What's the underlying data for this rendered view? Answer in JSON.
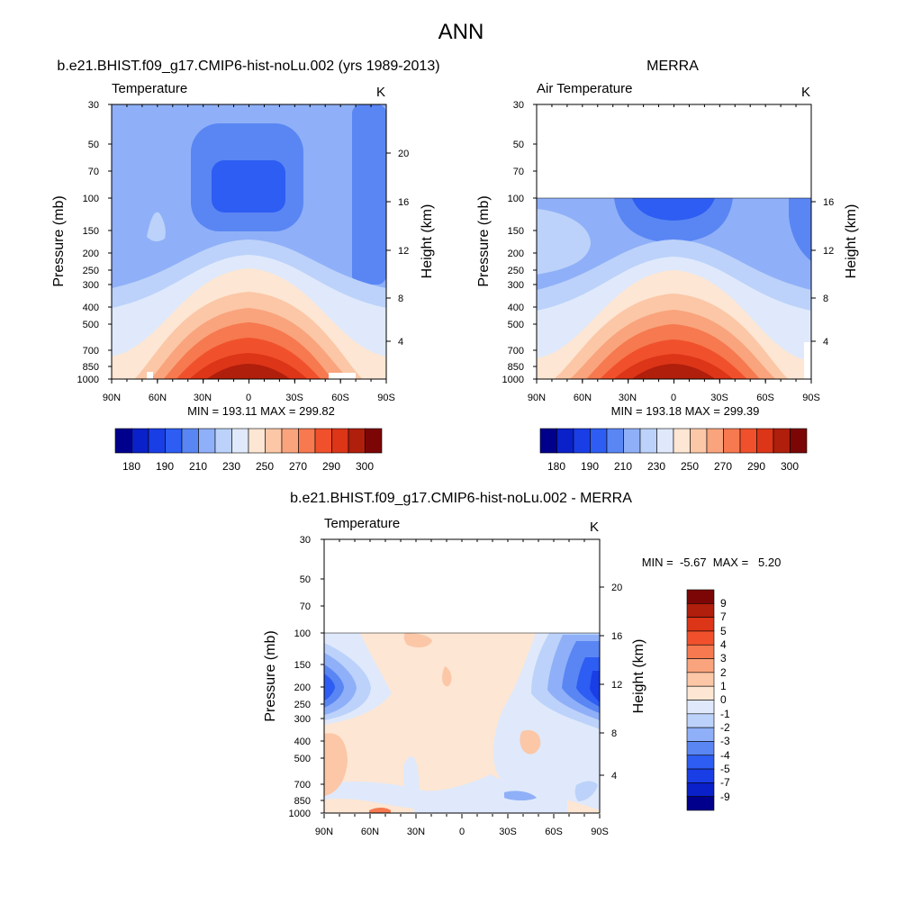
{
  "figure": {
    "title": "ANN"
  },
  "chart_data": [
    {
      "type": "heatmap",
      "title": "b.e21.BHIST.f09_g17.CMIP6-hist-noLu.002 (yrs 1989-2013)",
      "subtitle_left": "Temperature",
      "subtitle_right": "K",
      "ylabel": "Pressure (mb)",
      "ylabel_right": "Height (km)",
      "x_ticks": [
        "90N",
        "60N",
        "30N",
        "0",
        "30S",
        "60S",
        "90S"
      ],
      "y_ticks": [
        "30",
        "50",
        "70",
        "100",
        "150",
        "200",
        "250",
        "300",
        "400",
        "500",
        "700",
        "850",
        "1000"
      ],
      "height_ticks": [
        "20",
        "16",
        "12",
        "8",
        "4"
      ],
      "stats": "MIN = 193.11  MAX = 299.82",
      "data_top_pressure": 30,
      "colorbar_labels": [
        "180",
        "190",
        "210",
        "230",
        "250",
        "270",
        "290",
        "300"
      ]
    },
    {
      "type": "heatmap",
      "title": "MERRA",
      "subtitle_left": "Air Temperature",
      "subtitle_right": "K",
      "ylabel": "Pressure (mb)",
      "ylabel_right": "Height (km)",
      "x_ticks": [
        "90N",
        "60N",
        "30N",
        "0",
        "30S",
        "60S",
        "90S"
      ],
      "y_ticks": [
        "30",
        "50",
        "70",
        "100",
        "150",
        "200",
        "250",
        "300",
        "400",
        "500",
        "700",
        "850",
        "1000"
      ],
      "height_ticks": [
        "16",
        "12",
        "8",
        "4"
      ],
      "stats": "MIN = 193.18  MAX = 299.39",
      "data_top_pressure": 100,
      "colorbar_labels": [
        "180",
        "190",
        "210",
        "230",
        "250",
        "270",
        "290",
        "300"
      ]
    },
    {
      "type": "heatmap",
      "title": "b.e21.BHIST.f09_g17.CMIP6-hist-noLu.002 - MERRA",
      "subtitle_left": "Temperature",
      "subtitle_right": "K",
      "ylabel": "Pressure (mb)",
      "ylabel_right": "Height (km)",
      "x_ticks": [
        "90N",
        "60N",
        "30N",
        "0",
        "30S",
        "60S",
        "90S"
      ],
      "y_ticks": [
        "30",
        "50",
        "70",
        "100",
        "150",
        "200",
        "250",
        "300",
        "400",
        "500",
        "700",
        "850",
        "1000"
      ],
      "height_ticks": [
        "20",
        "16",
        "12",
        "8",
        "4"
      ],
      "stats": "MIN =  -5.67  MAX =   5.20",
      "data_top_pressure": 100,
      "colorbar_labels": [
        "9",
        "7",
        "5",
        "4",
        "3",
        "2",
        "1",
        "0",
        "-1",
        "-2",
        "-3",
        "-4",
        "-5",
        "-7",
        "-9"
      ]
    }
  ],
  "colors": {
    "temp_scale": [
      "#00008c",
      "#0a20c8",
      "#1a3ee6",
      "#2d5df2",
      "#5a86f4",
      "#8fb0f8",
      "#bcd2fa",
      "#dfe9fb",
      "#fde6d3",
      "#fbc7a7",
      "#f9a47d",
      "#f6794f",
      "#f0512c",
      "#dc3518",
      "#b01e0c",
      "#7c0606"
    ],
    "diff_scale": [
      "#00008c",
      "#0a20c8",
      "#1a3ee6",
      "#2d5df2",
      "#5a86f4",
      "#8fb0f8",
      "#bcd2fa",
      "#dfe9fb",
      "#fde6d3",
      "#fbc7a7",
      "#f9a47d",
      "#f6794f",
      "#f0512c",
      "#dc3518",
      "#b01e0c",
      "#7c0606"
    ]
  }
}
